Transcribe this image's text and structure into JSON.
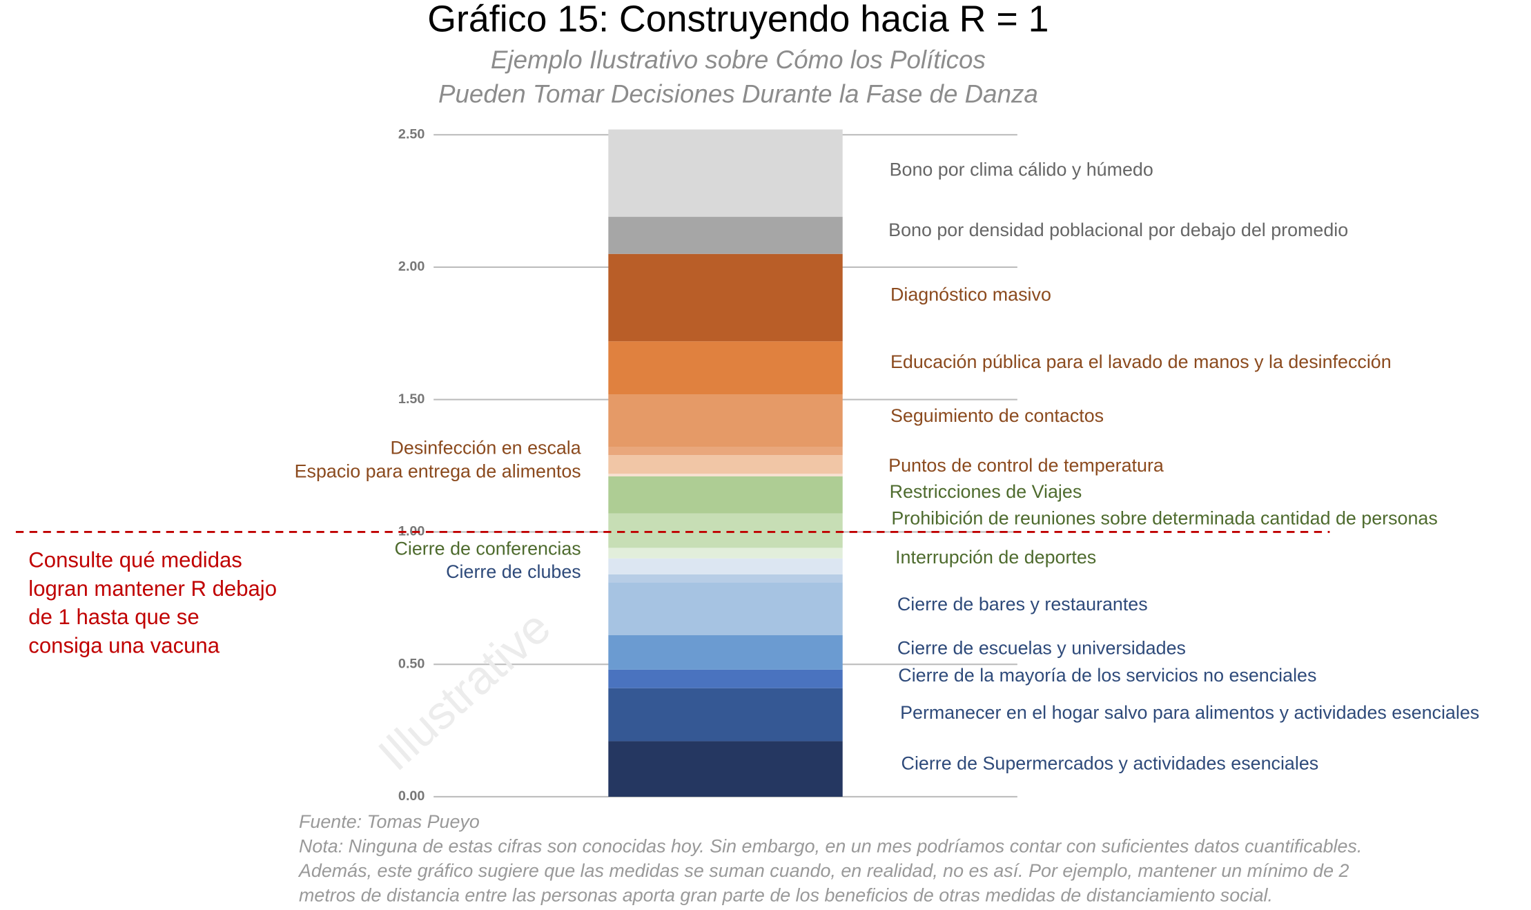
{
  "chart_data": {
    "type": "stacked-bar",
    "title": "Gráfico 15: Construyendo hacia R = 1",
    "subtitle": [
      "Ejemplo Ilustrativo sobre Cómo los Políticos",
      "Pueden Tomar Decisiones Durante la Fase de Danza"
    ],
    "ylim": [
      0,
      2.5
    ],
    "yticks": [
      {
        "value": 0,
        "label": "0.00"
      },
      {
        "value": 0.5,
        "label": "0.50"
      },
      {
        "value": 1,
        "label": "1.00"
      },
      {
        "value": 1.5,
        "label": "1.50"
      },
      {
        "value": 2,
        "label": "2.00"
      },
      {
        "value": 2.5,
        "label": "2.50"
      }
    ],
    "grid": true,
    "series": [
      {
        "name": "Cierre de Supermercados y actividades esenciales",
        "color": "#253761",
        "values": [
          0.21
        ]
      },
      {
        "name": "Permanecer en el hogar salvo para alimentos y actividades esenciales",
        "color": "#355894",
        "values": [
          0.2
        ]
      },
      {
        "name": "Cierre de la mayoría de los servicios no esenciales",
        "color": "#4a73bf",
        "values": [
          0.07
        ]
      },
      {
        "name": "Cierre de escuelas y universidades",
        "color": "#6b9bd1",
        "values": [
          0.13
        ]
      },
      {
        "name": "Cierre de bares y restaurantes",
        "color": "#a6c3e2",
        "values": [
          0.2
        ]
      },
      {
        "name": "Cierre de clubes",
        "color": "#b7cde6",
        "values": [
          0.03
        ]
      },
      {
        "name": "Interrupción de deportes",
        "color": "#dce6f2",
        "values": [
          0.06
        ]
      },
      {
        "name": "Cierre de conferencias",
        "color": "#e2eedb",
        "values": [
          0.04
        ]
      },
      {
        "name": "Prohibición de reuniones sobre determinada cantidad de personas",
        "color": "#c7deb5",
        "values": [
          0.13
        ]
      },
      {
        "name": "Restricciones de Viajes",
        "color": "#aecd94",
        "values": [
          0.14
        ]
      },
      {
        "name": "Espacio para entrega de alimentos",
        "color": "#f7e0d0",
        "values": [
          0.01
        ]
      },
      {
        "name": "Puntos de control de temperatura",
        "color": "#f1c6a6",
        "values": [
          0.07
        ]
      },
      {
        "name": "Desinfección en escala",
        "color": "#e9a77c",
        "values": [
          0.03
        ]
      },
      {
        "name": "Seguimiento de contactos",
        "color": "#e59a67",
        "values": [
          0.2
        ]
      },
      {
        "name": "Educación pública para el lavado de manos y la desinfección",
        "color": "#e0813f",
        "values": [
          0.2
        ]
      },
      {
        "name": "Diagnóstico masivo",
        "color": "#b95e28",
        "values": [
          0.33
        ]
      },
      {
        "name": "Bono por densidad poblacional por debajo del promedio",
        "color": "#a6a6a6",
        "values": [
          0.14
        ]
      },
      {
        "name": "Bono por clima cálido y húmedo",
        "color": "#d9d9d9",
        "values": [
          0.33
        ]
      }
    ],
    "reference_line": {
      "value": 1,
      "color": "#c00000"
    },
    "annotation": [
      "Consulte qué medidas",
      "logran mantener R debajo",
      "de 1 hasta que se",
      "consiga una vacuna"
    ],
    "watermark": "Illustrative",
    "source": "Fuente: Tomas Pueyo",
    "note": [
      "Nota: Ninguna de estas cifras son conocidas hoy. Sin embargo, en un mes podríamos contar con suficientes datos cuantificables.",
      "Además, este gráfico sugiere que las medidas se suman cuando, en realidad, no es así. Por ejemplo, mantener un mínimo de 2",
      "metros de distancia entre las personas aporta gran parte de los beneficios de otras medidas de distanciamiento social."
    ]
  }
}
